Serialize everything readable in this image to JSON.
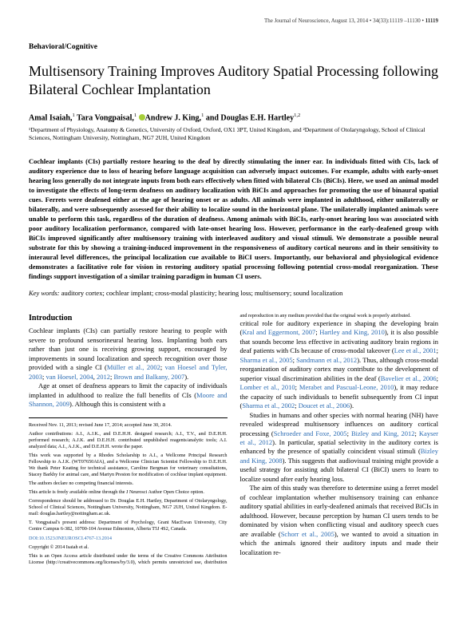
{
  "header": {
    "journal": "The Journal of Neuroscience, August 13, 2014 • 34(33):11119 –11130 • ",
    "page": "11119"
  },
  "section_label": "Behavioral/Cognitive",
  "title": "Multisensory Training Improves Auditory Spatial Processing following Bilateral Cochlear Implantation",
  "authors_html": "Amal Isaiah,<sup>1</sup> Tara Vongpaisal,<sup>1</sup> <span class='orcid'></span>Andrew J. King,<sup>1</sup> and Douglas E.H. Hartley<sup>1,2</sup>",
  "affiliations": "¹Department of Physiology, Anatomy & Genetics, University of Oxford, Oxford, OX1 3PT, United Kingdom, and ²Department of Otolaryngology, School of Clinical Sciences, Nottingham University, Nottingham, NG7 2UH, United Kingdom",
  "abstract": "Cochlear implants (CIs) partially restore hearing to the deaf by directly stimulating the inner ear. In individuals fitted with CIs, lack of auditory experience due to loss of hearing before language acquisition can adversely impact outcomes. For example, adults with early-onset hearing loss generally do not integrate inputs from both ears effectively when fitted with bilateral CIs (BiCIs). Here, we used an animal model to investigate the effects of long-term deafness on auditory localization with BiCIs and approaches for promoting the use of binaural spatial cues. Ferrets were deafened either at the age of hearing onset or as adults. All animals were implanted in adulthood, either unilaterally or bilaterally, and were subsequently assessed for their ability to localize sound in the horizontal plane. The unilaterally implanted animals were unable to perform this task, regardless of the duration of deafness. Among animals with BiCIs, early-onset hearing loss was associated with poor auditory localization performance, compared with late-onset hearing loss. However, performance in the early-deafened group with BiCIs improved significantly after multisensory training with interleaved auditory and visual stimuli. We demonstrate a possible neural substrate for this by showing a training-induced improvement in the responsiveness of auditory cortical neurons and in their sensitivity to interaural level differences, the principal localization cue available to BiCI users. Importantly, our behavioral and physiological evidence demonstrates a facilitative role for vision in restoring auditory spatial processing following potential cross-modal reorganization. These findings support investigation of a similar training paradigm in human CI users.",
  "keywords_label": "Key words:",
  "keywords": "auditory cortex; cochlear implant; cross-modal plasticity; hearing loss; multisensory; sound localization",
  "intro_heading": "Introduction",
  "intro_p1": "Cochlear implants (CIs) can partially restore hearing to people with severe to profound sensorineural hearing loss. Implanting both ears rather than just one is receiving growing support, encouraged by improvements in sound localization and speech recognition over those provided with a single CI (<span class='cite'>Müller et al., 2002</span>; <span class='cite'>van Hoesel and Tyler, 2003</span>; <span class='cite'>van Hoesel, 2004</span>, <span class='cite'>2012</span>; <span class='cite'>Brown and Balkany, 2007</span>).",
  "intro_p2": "Age at onset of deafness appears to limit the capacity of individuals implanted in adulthood to realize the full benefits of CIs (<span class='cite'>Moore and Shannon, 2009</span>). Although this is consistent with a",
  "col2_p1": "critical role for auditory experience in shaping the developing brain (<span class='cite'>Kral and Eggermont, 2007</span>; <span class='cite'>Hartley and King, 2010</span>), it is also possible that sounds become less effective in activating auditory brain regions in deaf patients with CIs because of cross-modal takeover (<span class='cite'>Lee et al., 2001</span>; <span class='cite'>Sharma et al., 2005</span>; <span class='cite'>Sandmann et al., 2012</span>). Thus, although cross-modal reorganization of auditory cortex may contribute to the development of superior visual discrimination abilities in the deaf (<span class='cite'>Bavelier et al., 2006</span>; <span class='cite'>Lomber et al., 2010</span>; <span class='cite'>Merabet and Pascual-Leone, 2010</span>), it may reduce the capacity of such individuals to benefit subsequently from CI input (<span class='cite'>Sharma et al., 2002</span>; <span class='cite'>Doucet et al., 2006</span>).",
  "col2_p2": "Studies in humans and other species with normal hearing (NH) have revealed widespread multisensory influences on auditory cortical processing (<span class='cite'>Schroeder and Foxe, 2005</span>; <span class='cite'>Bizley and King, 2012</span>; <span class='cite'>Kayser et al., 2012</span>). In particular, spatial selectivity in the auditory cortex is enhanced by the presence of spatially coincident visual stimuli (<span class='cite'>Bizley and King, 2008</span>). This suggests that audiovisual training might provide a useful strategy for assisting adult bilateral CI (BiCI) users to learn to localize sound after early hearing loss.",
  "col2_p3": "The aim of this study was therefore to determine using a ferret model of cochlear implantation whether multisensory training can enhance auditory spatial abilities in early-deafened animals that received BiCIs in adulthood. However, because perception by human CI users tends to be dominated by vision when conflicting visual and auditory speech cues are available (<span class='cite'>Schorr et al., 2005</span>), we wanted to avoid a situation in which the animals ignored their auditory inputs and made their localization re-",
  "footnotes": {
    "received": "Received Nov. 11, 2013; revised June 17, 2014; accepted June 30, 2014.",
    "contrib": "Author contributions: A.I., A.J.K., and D.E.H.H. designed research; A.I., T.V., and D.E.H.H. performed research; A.J.K. and D.E.H.H. contributed unpublished reagents/analytic tools; A.I. analyzed data; A.I., A.J.K., and D.E.H.H. wrote the paper.",
    "funding": "This work was supported by a Rhodes Scholarship to A.I., a Wellcome Principal Research Fellowship to A.J.K. (WT07650AIA), and a Wellcome Clinician Scientist Fellowship to D.E.H.H. We thank Peter Keating for technical assistance, Caroline Bergman for veterinary consultations, Stacey Barkby for animal care, and Martyn Preston for modification of cochlear implant equipment.",
    "conflict": "The authors declare no competing financial interests.",
    "openaccess": "This article is freely available online through the J Neurosci Author Open Choice option.",
    "corr": "Correspondence should be addressed to Dr. Douglas E.H. Hartley, Department of Otolaryngology, School of Clinical Sciences, Nottingham University, Nottingham, NG7 2UH, United Kingdom. E-mail: douglas.hartley@nottingham.ac.uk.",
    "present": "T. Vongpaisal's present address: Department of Psychology, Grant MacEwan University, City Centre Campus 6-382, 10700-104 Avenue Edmonton, Alberta T5J 4S2, Canada.",
    "doi_label": "DOI:10.1523/JNEUROSCI.4767-13.2014",
    "copyright": "Copyright © 2014 Isaiah et al.",
    "license": "This is an Open Access article distributed under the terms of the Creative Commons Attribution License (http://creativecommons.org/licenses/by/3.0), which permits unrestricted use, distribution and reproduction in any medium provided that the original work is properly attributed."
  }
}
